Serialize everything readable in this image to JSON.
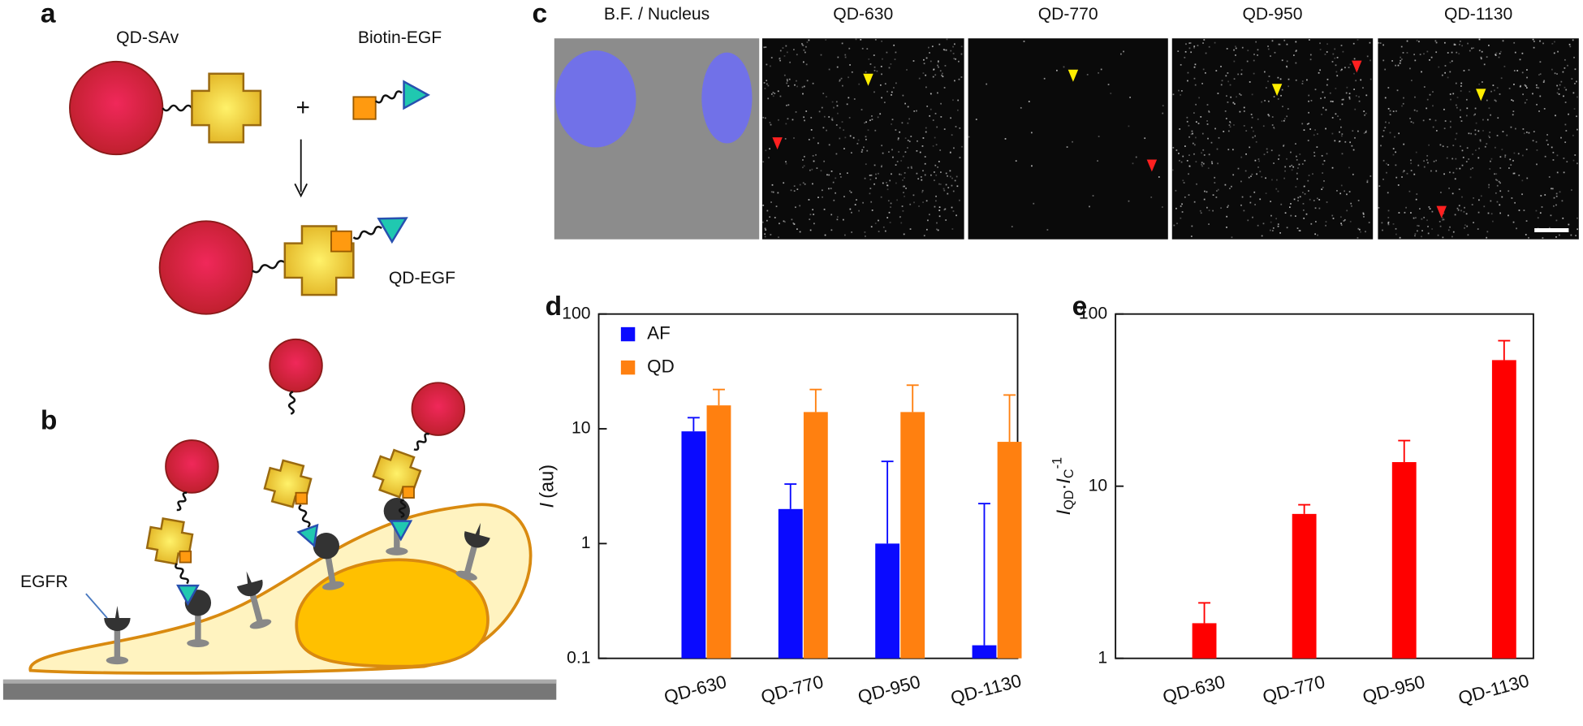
{
  "panels": {
    "a": {
      "label": "a",
      "qd_sav": "QD-SAv",
      "biotin_egf": "Biotin-EGF",
      "plus": "+",
      "qd_egf": "QD-EGF"
    },
    "b": {
      "label": "b",
      "egfr": "EGFR"
    },
    "c": {
      "label": "c",
      "headers": [
        "B.F. / Nucleus",
        "QD-630",
        "QD-770",
        "QD-950",
        "QD-1130"
      ]
    }
  },
  "chart_data": [
    {
      "type": "bar",
      "panel_label": "d",
      "categories": [
        "QD-630",
        "QD-770",
        "QD-950",
        "QD-1130"
      ],
      "series": [
        {
          "name": "AF",
          "color": "#0a0aff",
          "values": [
            9.5,
            2.0,
            1.0,
            0.13
          ],
          "errors": [
            3,
            1.3,
            4.2,
            2.1
          ]
        },
        {
          "name": "QD",
          "color": "#ff8010",
          "values": [
            16,
            14,
            14,
            7.7
          ],
          "errors": [
            6,
            8,
            10,
            12
          ]
        }
      ],
      "y_label_parts": [
        "I",
        "(au)"
      ],
      "log_y": true,
      "ylim": [
        0.1,
        100
      ],
      "yticks": [
        0.1,
        1,
        10,
        100
      ],
      "legend": "upper-left"
    },
    {
      "type": "bar",
      "panel_label": "e",
      "categories": [
        "QD-630",
        "QD-770",
        "QD-950",
        "QD-1130"
      ],
      "values": [
        1.6,
        6.9,
        13.8,
        54
      ],
      "errors": [
        0.5,
        0.9,
        4.6,
        16
      ],
      "color": "#ff0000",
      "y_label_parts": [
        "I",
        "QD",
        "·",
        "I",
        "C",
        "-1"
      ],
      "log_y": true,
      "ylim": [
        1,
        100
      ],
      "yticks": [
        1,
        10,
        100
      ]
    }
  ]
}
